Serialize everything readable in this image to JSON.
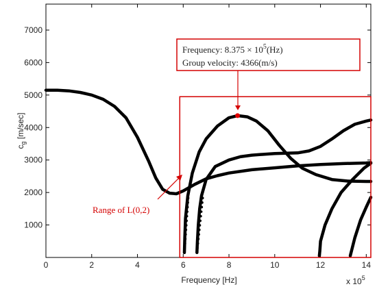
{
  "chart_data": {
    "type": "scatter",
    "title": "",
    "xlabel": "Frequency [Hz]",
    "ylabel_main": "c",
    "ylabel_sub": "g",
    "ylabel_unit": " [m/sec]",
    "x_exponent_base": "x 10",
    "x_exponent_power": "5",
    "xlim": [
      0,
      14.2
    ],
    "ylim": [
      0,
      7800
    ],
    "xticks": [
      0,
      2,
      4,
      6,
      8,
      10,
      12,
      14
    ],
    "yticks": [
      1000,
      2000,
      3000,
      4000,
      5000,
      6000,
      7000
    ],
    "grid": false,
    "series": [
      {
        "points": [
          [
            0,
            5150
          ],
          [
            0.5,
            5150
          ],
          [
            1,
            5130
          ],
          [
            1.5,
            5080
          ],
          [
            2,
            5000
          ],
          [
            2.5,
            4870
          ],
          [
            3,
            4650
          ],
          [
            3.5,
            4300
          ],
          [
            4,
            3700
          ],
          [
            4.5,
            2950
          ],
          [
            4.8,
            2450
          ],
          [
            5.1,
            2100
          ],
          [
            5.4,
            1980
          ],
          [
            5.7,
            1960
          ],
          [
            6,
            2050
          ],
          [
            6.5,
            2250
          ],
          [
            7,
            2420
          ],
          [
            7.5,
            2520
          ],
          [
            8,
            2600
          ],
          [
            9,
            2700
          ],
          [
            10,
            2760
          ],
          [
            11,
            2820
          ],
          [
            12,
            2860
          ],
          [
            13,
            2890
          ],
          [
            14,
            2910
          ],
          [
            14.2,
            2920
          ]
        ]
      },
      {
        "points": [
          [
            6.05,
            150
          ],
          [
            6.07,
            600
          ],
          [
            6.1,
            1200
          ],
          [
            6.2,
            1900
          ],
          [
            6.4,
            2600
          ],
          [
            6.7,
            3250
          ],
          [
            7,
            3650
          ],
          [
            7.5,
            4050
          ],
          [
            8,
            4300
          ],
          [
            8.375,
            4366
          ],
          [
            8.8,
            4330
          ],
          [
            9.2,
            4200
          ],
          [
            9.7,
            3900
          ],
          [
            10.2,
            3450
          ],
          [
            10.7,
            3050
          ],
          [
            11.2,
            2750
          ],
          [
            11.8,
            2550
          ],
          [
            12.5,
            2400
          ],
          [
            13.2,
            2350
          ],
          [
            14,
            2340
          ],
          [
            14.2,
            2340
          ]
        ]
      },
      {
        "points": [
          [
            6.6,
            150
          ],
          [
            6.62,
            500
          ],
          [
            6.66,
            1000
          ],
          [
            6.72,
            1500
          ],
          [
            6.8,
            1900
          ],
          [
            7,
            2400
          ],
          [
            7.4,
            2800
          ],
          [
            8,
            3000
          ],
          [
            8.5,
            3100
          ],
          [
            9,
            3150
          ],
          [
            10,
            3200
          ],
          [
            11,
            3220
          ],
          [
            11.5,
            3280
          ],
          [
            12,
            3420
          ],
          [
            12.5,
            3650
          ],
          [
            13,
            3900
          ],
          [
            13.5,
            4100
          ],
          [
            14,
            4200
          ],
          [
            14.2,
            4230
          ]
        ]
      },
      {
        "points": [
          [
            11.95,
            50
          ],
          [
            11.97,
            200
          ],
          [
            12,
            500
          ],
          [
            12.2,
            1000
          ],
          [
            12.5,
            1500
          ],
          [
            12.9,
            2000
          ],
          [
            13.4,
            2400
          ],
          [
            13.9,
            2750
          ],
          [
            14.2,
            2900
          ]
        ]
      },
      {
        "points": [
          [
            13.3,
            50
          ],
          [
            13.5,
            600
          ],
          [
            13.75,
            1150
          ],
          [
            14,
            1550
          ],
          [
            14.2,
            1850
          ]
        ]
      }
    ],
    "highlight_point": {
      "x": 8.375,
      "y": 4366,
      "color": "#e00000"
    },
    "range_box": {
      "x0": 5.85,
      "x1": 14.2,
      "y0": 0,
      "y1": 4950,
      "color": "#d40000"
    },
    "annotations": {
      "frequency_prefix": "Frequency: 8.375 × 10",
      "frequency_power": "5",
      "frequency_suffix": "(Hz)",
      "group_velocity": "Group velocity: 4366(m/s)",
      "range_label": "Range of L(0,2)"
    },
    "colors": {
      "curve": "#000000",
      "annotation": "#d40000"
    }
  }
}
